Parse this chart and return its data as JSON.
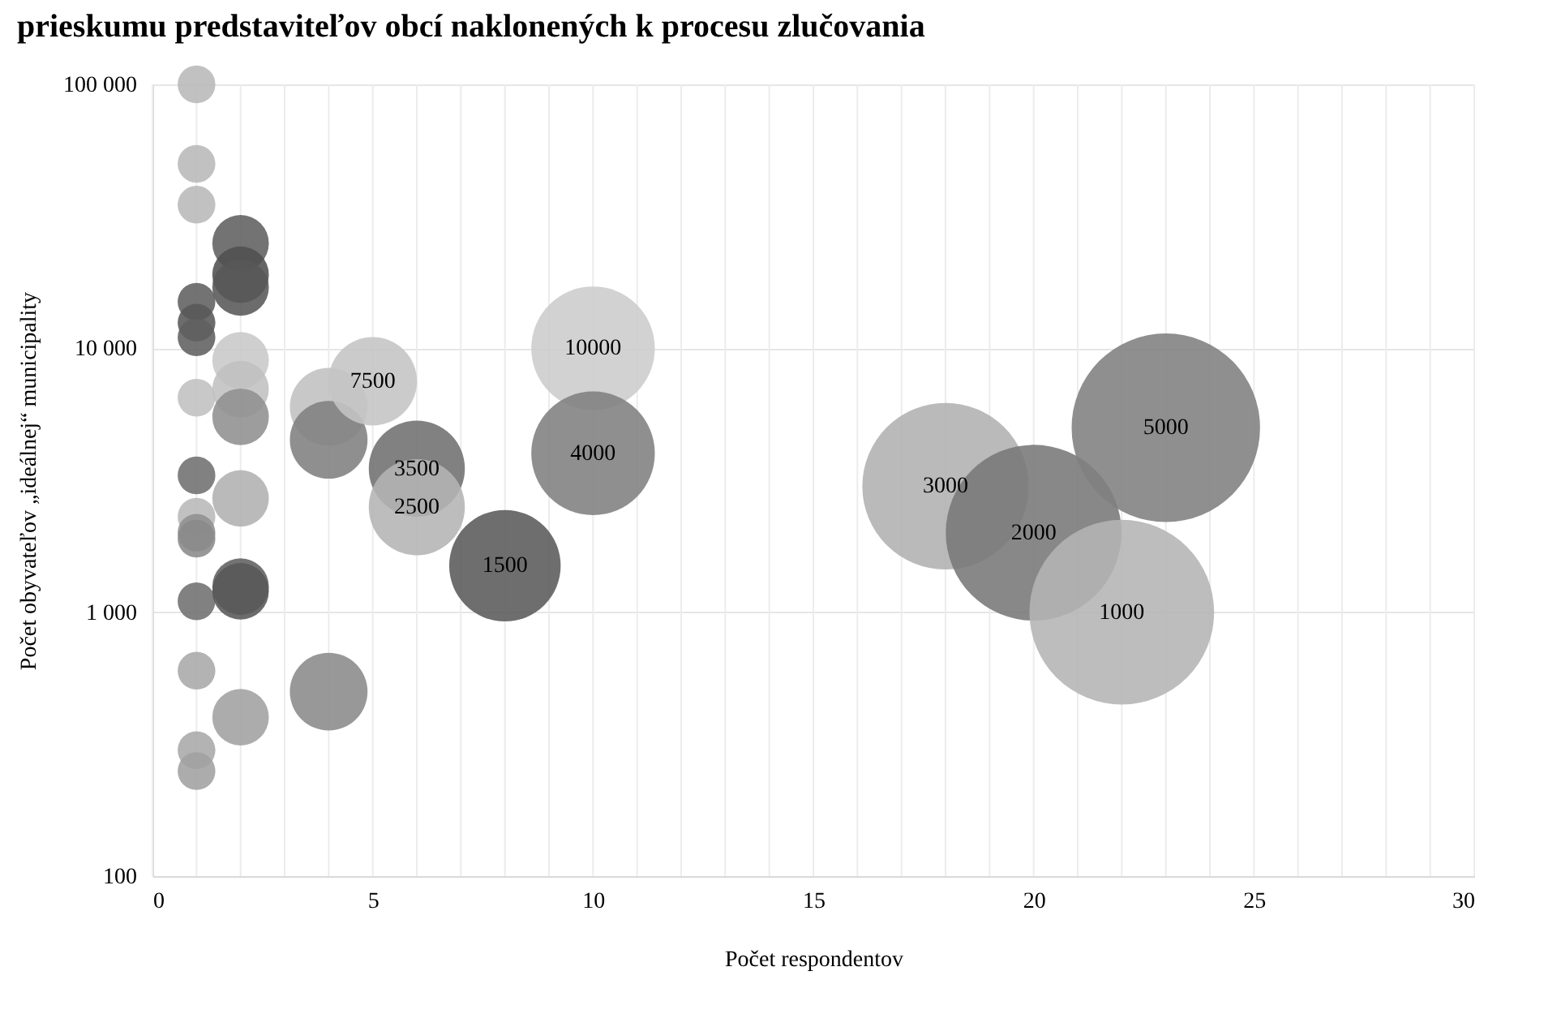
{
  "chart_data": {
    "type": "bubble",
    "title": "prieskumu predstaviteľov obcí naklonených k procesu zlučovania",
    "xlabel": "Počet respondentov",
    "ylabel": "Počet obyvateľov „ideálnej“ municipality",
    "x": [
      1,
      1,
      1,
      1,
      1,
      1,
      1,
      1,
      1,
      1,
      1,
      1,
      1,
      1,
      1,
      2,
      2,
      2,
      2,
      2,
      2,
      2,
      2,
      2,
      2,
      4,
      4,
      4,
      5,
      6,
      6,
      8,
      10,
      10,
      18,
      20,
      22,
      23
    ],
    "values": [
      100000,
      50000,
      35000,
      15000,
      12500,
      11000,
      6500,
      3300,
      2300,
      2000,
      1900,
      1100,
      600,
      300,
      250,
      25000,
      19000,
      17000,
      9000,
      7000,
      5500,
      2700,
      1250,
      1200,
      400,
      6000,
      4500,
      500,
      7500,
      3500,
      2500,
      1500,
      10000,
      4000,
      3000,
      2000,
      1000,
      5000
    ],
    "sizes": [
      0.04,
      0.04,
      0.04,
      0.04,
      0.04,
      0.04,
      0.04,
      0.04,
      0.04,
      0.04,
      0.04,
      0.04,
      0.04,
      0.04,
      0.04,
      0.09,
      0.09,
      0.09,
      0.09,
      0.09,
      0.09,
      0.09,
      0.09,
      0.09,
      0.09,
      0.17,
      0.17,
      0.17,
      0.22,
      0.26,
      0.26,
      0.35,
      0.43,
      0.43,
      0.78,
      0.87,
      0.96,
      1
    ],
    "colors": [
      "#b8b8b8",
      "#b8b8b8",
      "#b8b8b8",
      "#606060",
      "#585858",
      "#606060",
      "#c0c0c0",
      "#707070",
      "#b8b8b8",
      "#909090",
      "#8a8a8a",
      "#707070",
      "#a8a8a8",
      "#a8a8a8",
      "#a0a0a0",
      "#606060",
      "#505050",
      "#585858",
      "#c8c8c8",
      "#c0c0c0",
      "#909090",
      "#b0b0b0",
      "#606060",
      "#585858",
      "#a0a0a0",
      "#c0c0c0",
      "#808080",
      "#8a8a8a",
      "#c4c4c4",
      "#707070",
      "#b4b4b4",
      "#5a5a5a",
      "#cccccc",
      "#808080",
      "#b0b0b0",
      "#787878",
      "#b4b4b4",
      "#808080"
    ],
    "value_labels": [
      null,
      null,
      null,
      null,
      null,
      null,
      null,
      null,
      null,
      null,
      null,
      null,
      null,
      null,
      null,
      null,
      null,
      null,
      null,
      null,
      null,
      null,
      null,
      null,
      null,
      null,
      null,
      null,
      "7500",
      "3500",
      "2500",
      "1500",
      "10000",
      "4000",
      "3000",
      "2000",
      "1000",
      "5000"
    ],
    "xlim": [
      0,
      30
    ],
    "xticks": [
      0,
      5,
      10,
      15,
      20,
      25,
      30
    ],
    "ylim": [
      100,
      100000
    ],
    "log": "y",
    "yticks": [
      {
        "value": 100,
        "label": "100"
      },
      {
        "value": 1000,
        "label": "1 000"
      },
      {
        "value": 10000,
        "label": "10 000"
      },
      {
        "value": 100000,
        "label": "100 000"
      }
    ],
    "grid": true,
    "legend": false
  }
}
